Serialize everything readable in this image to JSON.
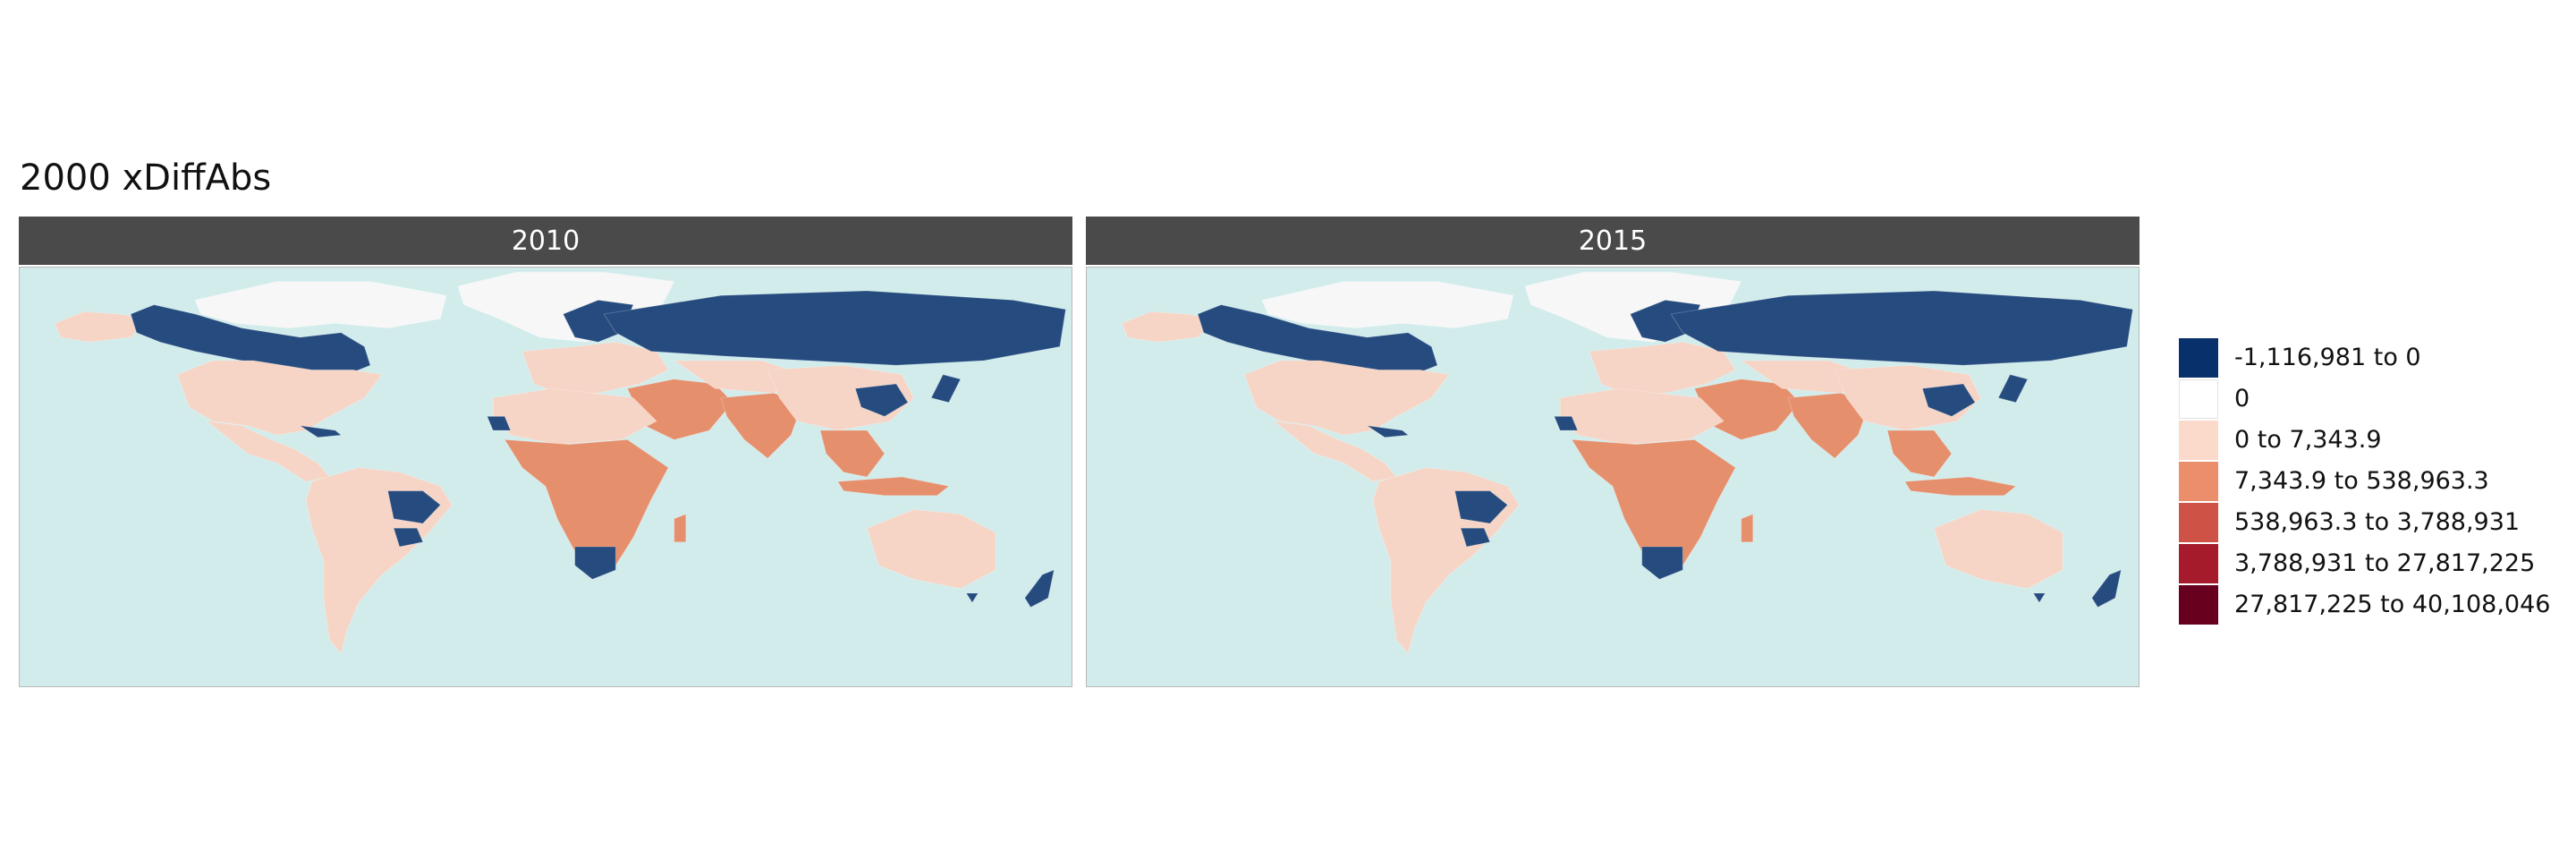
{
  "title": "2000 xDiffAbs",
  "panels": [
    {
      "label": "2010"
    },
    {
      "label": "2015"
    }
  ],
  "legend": {
    "items": [
      {
        "label": "-1,116,981 to 0",
        "color": "#08306b"
      },
      {
        "label": "0",
        "color": "#ffffff"
      },
      {
        "label": "0 to 7,343.9",
        "color": "#fbd9cb"
      },
      {
        "label": "7,343.9 to 538,963.3",
        "color": "#ea8e6c"
      },
      {
        "label": "538,963.3 to 3,788,931",
        "color": "#cf5247"
      },
      {
        "label": "3,788,931 to 27,817,225",
        "color": "#a51b2c"
      },
      {
        "label": "27,817,225 to 40,108,046",
        "color": "#67001f"
      }
    ]
  },
  "map_colors": {
    "ocean": "#d2ecec",
    "loss": "#264c7f",
    "low_gain": "#f6d5c6",
    "mid_gain": "#e68f6c",
    "no_data": "#f7f7f7"
  }
}
